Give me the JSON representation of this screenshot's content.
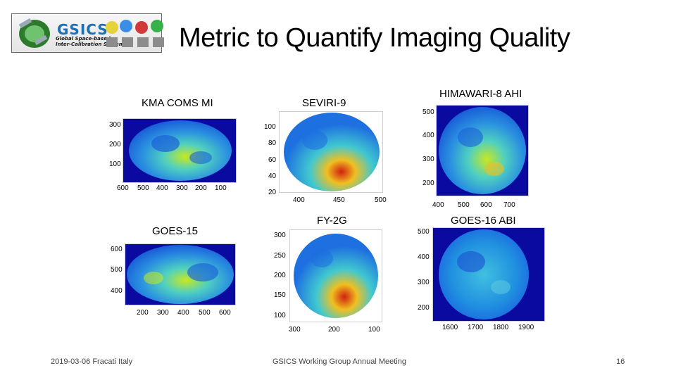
{
  "logo": {
    "text": "GSICS",
    "subtitle_line1": "Global Space-based",
    "subtitle_line2": "Inter-Calibration System"
  },
  "title": "Metric to Quantify Imaging Quality",
  "panels": [
    {
      "label": "KMA COMS MI",
      "yticks": [
        "300",
        "200",
        "100"
      ],
      "xticks": [
        "600",
        "500",
        "400",
        "300",
        "200",
        "100"
      ]
    },
    {
      "label": "SEVIRI-9",
      "yticks": [
        "100",
        "80",
        "60",
        "40",
        "20"
      ],
      "xticks": [
        "400",
        "450",
        "500"
      ]
    },
    {
      "label": "HIMAWARI-8 AHI",
      "yticks": [
        "500",
        "400",
        "300",
        "200"
      ],
      "xticks": [
        "400",
        "500",
        "600",
        "700"
      ]
    },
    {
      "label": "GOES-15",
      "yticks": [
        "600",
        "500",
        "400"
      ],
      "xticks": [
        "200",
        "300",
        "400",
        "500",
        "600"
      ]
    },
    {
      "label": "FY-2G",
      "yticks": [
        "300",
        "250",
        "200",
        "150",
        "100"
      ],
      "xticks": [
        "300",
        "200",
        "100"
      ]
    },
    {
      "label": "GOES-16 ABI",
      "yticks": [
        "500",
        "400",
        "300",
        "200"
      ],
      "xticks": [
        "1600",
        "1700",
        "1800",
        "1900"
      ]
    }
  ],
  "colors": {
    "bg_blue": "#0a0aa0",
    "moon_mid": "#1f8fe0",
    "moon_bright": "#c8e820",
    "moon_hot": "#d02010"
  },
  "footer": {
    "date_location": "2019-03-06 Fracati Italy",
    "meeting": "GSICS Working Group Annual Meeting",
    "page_number": "16"
  }
}
